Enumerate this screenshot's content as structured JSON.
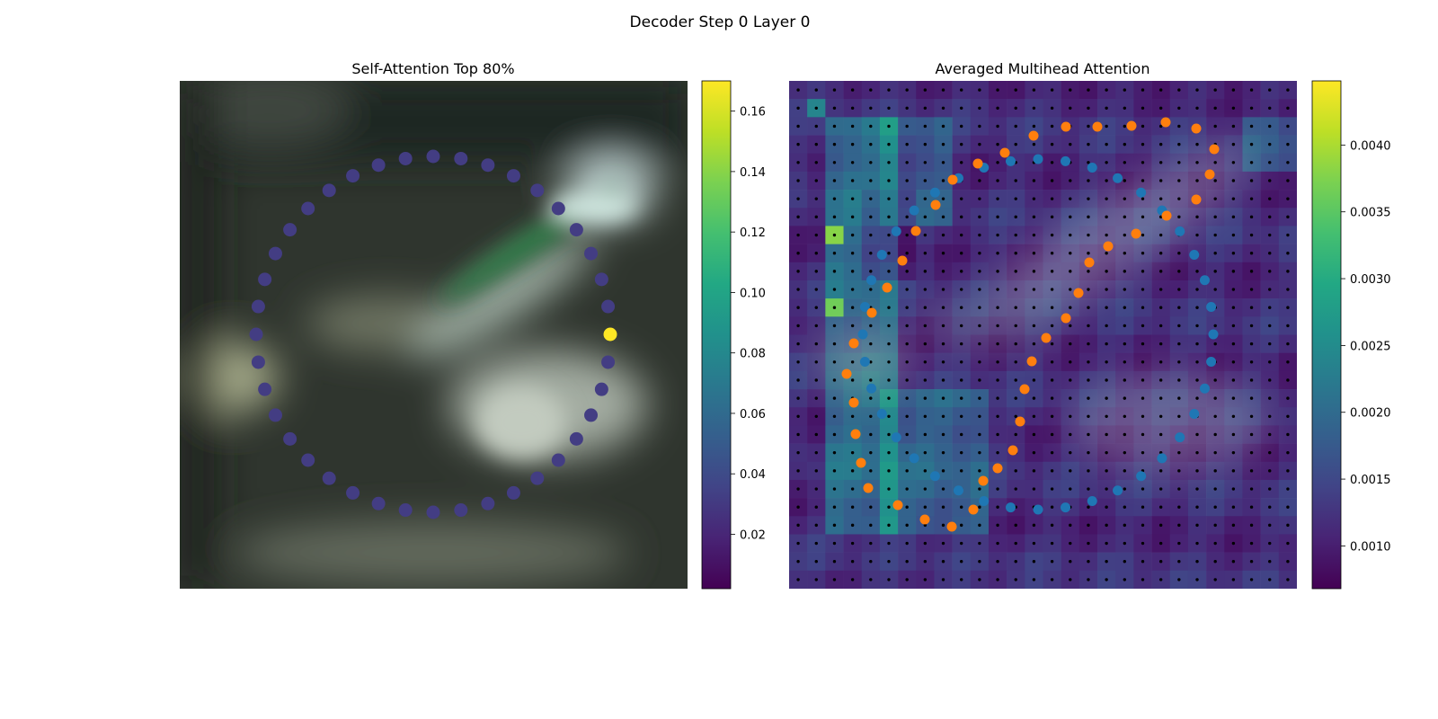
{
  "figure": {
    "title": "Decoder Step 0 Layer 0"
  },
  "chart_data": [
    {
      "type": "heatmap",
      "title": "Self-Attention Top 80%",
      "description_visual": "blurred background image with a ring of 40 points colored by attention weight",
      "colorbar": {
        "colormap": "viridis",
        "range": [
          0.002,
          0.17
        ],
        "ticks": [
          0.02,
          0.04,
          0.06,
          0.08,
          0.1,
          0.12,
          0.14,
          0.16
        ],
        "tick_labels": [
          "0.02",
          "0.04",
          "0.06",
          "0.08",
          "0.10",
          "0.12",
          "0.14",
          "0.16"
        ]
      },
      "ring_points": {
        "count": 40,
        "default_value": 0.032,
        "highlight_index": 0,
        "highlight_value": 0.17
      }
    },
    {
      "type": "heatmap",
      "title": "Averaged Multihead Attention",
      "grid": {
        "rows": 28,
        "cols": 28
      },
      "colorbar": {
        "colormap": "viridis",
        "range": [
          0.00068,
          0.00448
        ],
        "ticks": [
          0.001,
          0.0015,
          0.002,
          0.0025,
          0.003,
          0.0035,
          0.004
        ],
        "tick_labels": [
          "0.0010",
          "0.0015",
          "0.0020",
          "0.0025",
          "0.0030",
          "0.0035",
          "0.0040"
        ]
      },
      "series": [
        {
          "color": "#1f77b4",
          "marker": "circle"
        },
        {
          "color": "#ff7f0e",
          "marker": "circle"
        },
        {
          "color": "#000000",
          "marker": "small-dot-grid"
        }
      ]
    }
  ]
}
